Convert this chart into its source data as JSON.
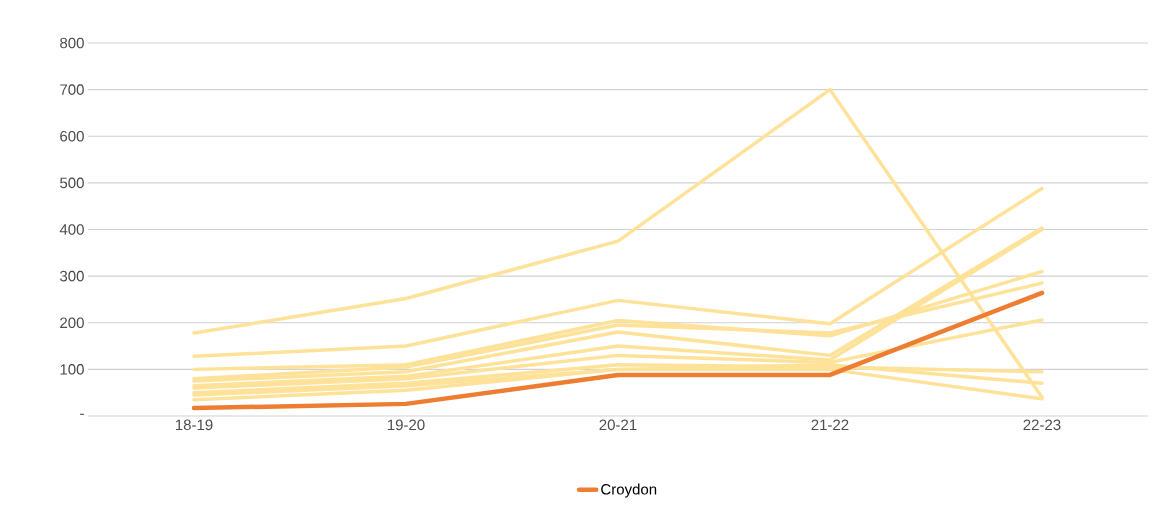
{
  "chart_data": {
    "type": "line",
    "categories": [
      "18-19",
      "19-20",
      "20-21",
      "21-22",
      "22-23"
    ],
    "ylim": [
      0,
      800
    ],
    "yticks": [
      {
        "value": 0,
        "label": "-"
      },
      100,
      200,
      300,
      400,
      500,
      600,
      700,
      800
    ],
    "grid": "y",
    "legend": "bottom",
    "line_style": "solid",
    "marker": "none",
    "series": [
      {
        "color": "#ffe29a",
        "values": [
          178,
          252,
          375,
          700,
          40
        ]
      },
      {
        "color": "#ffe29a",
        "values": [
          128,
          150,
          248,
          198,
          488
        ]
      },
      {
        "color": "#ffe29a",
        "values": [
          100,
          110,
          205,
          172,
          310
        ]
      },
      {
        "color": "#ffe29a",
        "values": [
          80,
          105,
          195,
          178,
          285
        ]
      },
      {
        "color": "#ffe29a",
        "values": [
          75,
          95,
          180,
          130,
          403
        ]
      },
      {
        "color": "#ffe29a",
        "values": [
          65,
          85,
          150,
          120,
          400
        ]
      },
      {
        "color": "#ffe29a",
        "values": [
          60,
          80,
          130,
          115,
          206
        ]
      },
      {
        "color": "#ffe29a",
        "values": [
          50,
          70,
          110,
          105,
          95
        ]
      },
      {
        "color": "#ffe29a",
        "values": [
          45,
          65,
          100,
          110,
          70
        ]
      },
      {
        "color": "#ffe29a",
        "values": [
          35,
          55,
          100,
          100,
          37
        ]
      },
      {
        "name": "Croydon",
        "color": "#ed7d31",
        "values": [
          17,
          26,
          88,
          88,
          264
        ]
      }
    ]
  }
}
